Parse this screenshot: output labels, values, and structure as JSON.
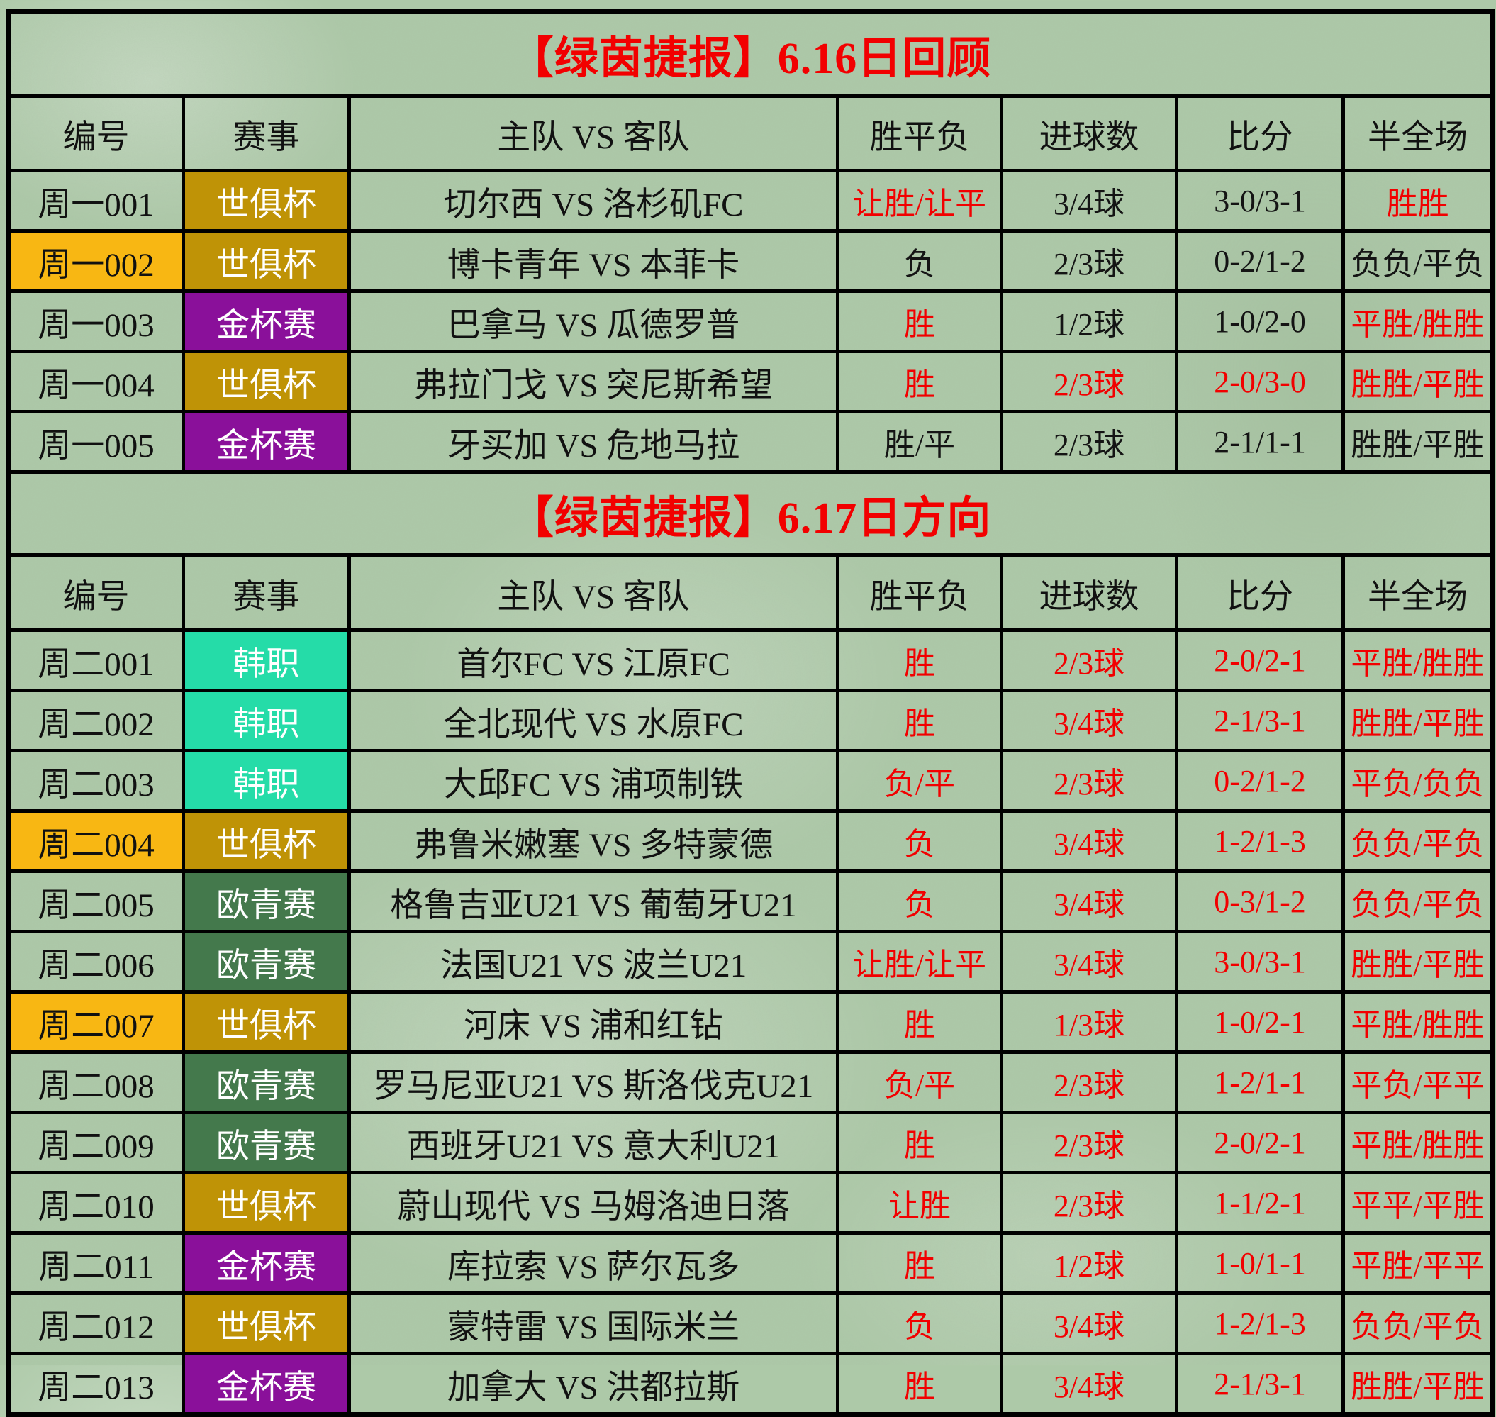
{
  "palette": {
    "page_background": "#adc9a8",
    "grid_border": "#000000",
    "title_red": "#f20000",
    "result_red": "#f20000",
    "text_black": "#141414",
    "badge_text": "#ffffff",
    "highlight_id_background": "#f8b713"
  },
  "headers": [
    "编号",
    "赛事",
    "主队 VS 客队",
    "胜平负",
    "进球数",
    "比分",
    "半全场"
  ],
  "league_styles": {
    "世俱杯": {
      "bg": "#bf9306",
      "fg": "#ffffff"
    },
    "金杯赛": {
      "bg": "#8a109a",
      "fg": "#ffffff"
    },
    "韩职": {
      "bg": "#25dca8",
      "fg": "#ffffff"
    },
    "欧青赛": {
      "bg": "#44794c",
      "fg": "#ffffff"
    }
  },
  "sections": [
    {
      "title": "【绿茵捷报】6.16日回顾",
      "rows": [
        {
          "no": "周一001",
          "no_highlight": false,
          "league": "世俱杯",
          "match": "切尔西 VS 洛杉矶FC",
          "results": [
            "让胜/让平",
            "3/4球",
            "3-0/3-1",
            "胜胜"
          ],
          "red": [
            true,
            false,
            false,
            true
          ]
        },
        {
          "no": "周一002",
          "no_highlight": true,
          "league": "世俱杯",
          "match": "博卡青年 VS 本菲卡",
          "results": [
            "负",
            "2/3球",
            "0-2/1-2",
            "负负/平负"
          ],
          "red": [
            false,
            false,
            false,
            false
          ]
        },
        {
          "no": "周一003",
          "no_highlight": false,
          "league": "金杯赛",
          "match": "巴拿马 VS 瓜德罗普",
          "results": [
            "胜",
            "1/2球",
            "1-0/2-0",
            "平胜/胜胜"
          ],
          "red": [
            true,
            false,
            false,
            true
          ]
        },
        {
          "no": "周一004",
          "no_highlight": false,
          "league": "世俱杯",
          "match": "弗拉门戈 VS 突尼斯希望",
          "results": [
            "胜",
            "2/3球",
            "2-0/3-0",
            "胜胜/平胜"
          ],
          "red": [
            true,
            true,
            true,
            true
          ]
        },
        {
          "no": "周一005",
          "no_highlight": false,
          "league": "金杯赛",
          "match": "牙买加 VS 危地马拉",
          "results": [
            "胜/平",
            "2/3球",
            "2-1/1-1",
            "胜胜/平胜"
          ],
          "red": [
            false,
            false,
            false,
            false
          ]
        }
      ]
    },
    {
      "title": "【绿茵捷报】6.17日方向",
      "rows": [
        {
          "no": "周二001",
          "no_highlight": false,
          "league": "韩职",
          "match": "首尔FC VS 江原FC",
          "results": [
            "胜",
            "2/3球",
            "2-0/2-1",
            "平胜/胜胜"
          ],
          "red": [
            true,
            true,
            true,
            true
          ]
        },
        {
          "no": "周二002",
          "no_highlight": false,
          "league": "韩职",
          "match": "全北现代 VS 水原FC",
          "results": [
            "胜",
            "3/4球",
            "2-1/3-1",
            "胜胜/平胜"
          ],
          "red": [
            true,
            true,
            true,
            true
          ]
        },
        {
          "no": "周二003",
          "no_highlight": false,
          "league": "韩职",
          "match": "大邱FC VS 浦项制铁",
          "results": [
            "负/平",
            "2/3球",
            "0-2/1-2",
            "平负/负负"
          ],
          "red": [
            true,
            true,
            true,
            true
          ]
        },
        {
          "no": "周二004",
          "no_highlight": true,
          "league": "世俱杯",
          "match": "弗鲁米嫩塞 VS 多特蒙德",
          "results": [
            "负",
            "3/4球",
            "1-2/1-3",
            "负负/平负"
          ],
          "red": [
            true,
            true,
            true,
            true
          ]
        },
        {
          "no": "周二005",
          "no_highlight": false,
          "league": "欧青赛",
          "match": "格鲁吉亚U21 VS 葡萄牙U21",
          "results": [
            "负",
            "3/4球",
            "0-3/1-2",
            "负负/平负"
          ],
          "red": [
            true,
            true,
            true,
            true
          ]
        },
        {
          "no": "周二006",
          "no_highlight": false,
          "league": "欧青赛",
          "match": "法国U21 VS 波兰U21",
          "results": [
            "让胜/让平",
            "3/4球",
            "3-0/3-1",
            "胜胜/平胜"
          ],
          "red": [
            true,
            true,
            true,
            true
          ]
        },
        {
          "no": "周二007",
          "no_highlight": true,
          "league": "世俱杯",
          "match": "河床 VS 浦和红钻",
          "results": [
            "胜",
            "1/3球",
            "1-0/2-1",
            "平胜/胜胜"
          ],
          "red": [
            true,
            true,
            true,
            true
          ]
        },
        {
          "no": "周二008",
          "no_highlight": false,
          "league": "欧青赛",
          "match": "罗马尼亚U21 VS 斯洛伐克U21",
          "results": [
            "负/平",
            "2/3球",
            "1-2/1-1",
            "平负/平平"
          ],
          "red": [
            true,
            true,
            true,
            true
          ]
        },
        {
          "no": "周二009",
          "no_highlight": false,
          "league": "欧青赛",
          "match": "西班牙U21 VS 意大利U21",
          "results": [
            "胜",
            "2/3球",
            "2-0/2-1",
            "平胜/胜胜"
          ],
          "red": [
            true,
            true,
            true,
            true
          ]
        },
        {
          "no": "周二010",
          "no_highlight": false,
          "league": "世俱杯",
          "match": "蔚山现代 VS 马姆洛迪日落",
          "results": [
            "让胜",
            "2/3球",
            "1-1/2-1",
            "平平/平胜"
          ],
          "red": [
            true,
            true,
            true,
            true
          ]
        },
        {
          "no": "周二011",
          "no_highlight": false,
          "league": "金杯赛",
          "match": "库拉索 VS 萨尔瓦多",
          "results": [
            "胜",
            "1/2球",
            "1-0/1-1",
            "平胜/平平"
          ],
          "red": [
            true,
            true,
            true,
            true
          ]
        },
        {
          "no": "周二012",
          "no_highlight": false,
          "league": "世俱杯",
          "match": "蒙特雷 VS 国际米兰",
          "results": [
            "负",
            "3/4球",
            "1-2/1-3",
            "负负/平负"
          ],
          "red": [
            true,
            true,
            true,
            true
          ]
        },
        {
          "no": "周二013",
          "no_highlight": false,
          "league": "金杯赛",
          "match": "加拿大 VS 洪都拉斯",
          "results": [
            "胜",
            "3/4球",
            "2-1/3-1",
            "胜胜/平胜"
          ],
          "red": [
            true,
            true,
            true,
            true
          ]
        }
      ]
    }
  ]
}
